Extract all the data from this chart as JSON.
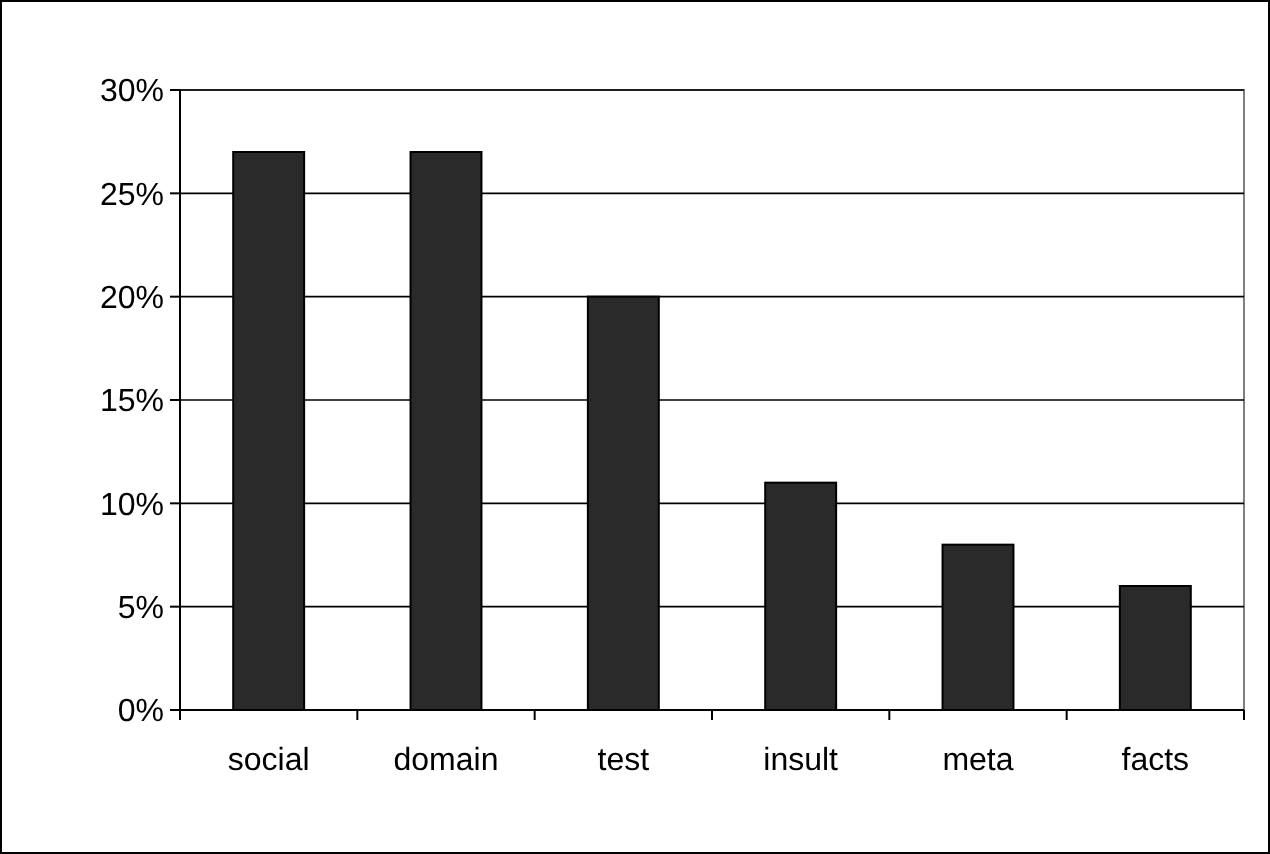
{
  "chart_data": {
    "type": "bar",
    "categories": [
      "social",
      "domain",
      "test",
      "insult",
      "meta",
      "facts"
    ],
    "values": [
      27,
      27,
      20,
      11,
      8,
      6
    ],
    "color": "#2a2a2a",
    "ylim": [
      0,
      30
    ],
    "yticks": [
      {
        "value": 0,
        "label": "0%"
      },
      {
        "value": 5,
        "label": "5%"
      },
      {
        "value": 10,
        "label": "10%"
      },
      {
        "value": 15,
        "label": "15%"
      },
      {
        "value": 20,
        "label": "20%"
      },
      {
        "value": 25,
        "label": "25%"
      },
      {
        "value": 30,
        "label": "30%"
      }
    ],
    "grid": "y"
  }
}
